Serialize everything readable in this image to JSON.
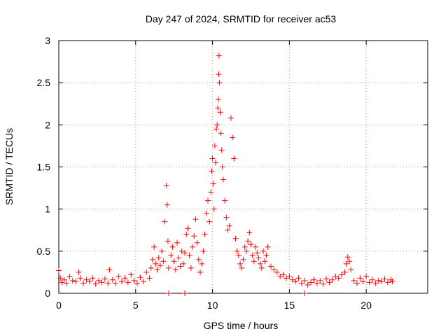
{
  "chart_data": {
    "type": "scatter",
    "title": "Day 247 of 2024, SRMTID for receiver ac53",
    "xlabel": "GPS time / hours",
    "ylabel": "SRMTID / TECUs",
    "xlim": [
      0,
      24
    ],
    "ylim": [
      0,
      3
    ],
    "xticks": [
      0,
      5,
      10,
      15,
      20
    ],
    "yticks": [
      0,
      0.5,
      1,
      1.5,
      2,
      2.5,
      3
    ],
    "xtick_labels": [
      "0",
      "5",
      "10",
      "15",
      "20"
    ],
    "ytick_labels": [
      "0",
      "0.5",
      "1",
      "1.5",
      "2",
      "2.5",
      "3"
    ],
    "grid": true,
    "marker": "+",
    "color": "#ff0000",
    "series": [
      {
        "name": "ac53",
        "x": [
          0.0,
          0.1,
          0.2,
          0.35,
          0.5,
          0.7,
          0.9,
          1.1,
          1.3,
          1.4,
          1.6,
          1.8,
          2.0,
          2.2,
          2.4,
          2.6,
          2.8,
          3.0,
          3.2,
          3.3,
          3.5,
          3.7,
          3.9,
          4.1,
          4.3,
          4.5,
          4.7,
          4.9,
          5.1,
          5.3,
          5.5,
          5.7,
          5.9,
          6.0,
          6.1,
          6.2,
          6.3,
          6.4,
          6.5,
          6.6,
          6.7,
          6.8,
          6.9,
          7.0,
          7.05,
          7.1,
          7.15,
          7.3,
          7.4,
          7.5,
          7.6,
          7.7,
          7.8,
          7.9,
          8.0,
          8.1,
          8.2,
          8.3,
          8.4,
          8.5,
          8.6,
          8.7,
          8.8,
          8.9,
          9.0,
          9.1,
          9.2,
          9.3,
          9.4,
          9.5,
          9.6,
          9.7,
          9.8,
          9.9,
          9.95,
          10.0,
          10.05,
          10.1,
          10.15,
          10.2,
          10.25,
          10.3,
          10.35,
          10.38,
          10.4,
          10.42,
          10.45,
          10.5,
          10.55,
          10.6,
          10.65,
          10.7,
          10.8,
          10.9,
          11.0,
          11.1,
          11.2,
          11.3,
          11.4,
          11.5,
          11.6,
          11.7,
          11.8,
          11.9,
          12.0,
          12.1,
          12.2,
          12.3,
          12.4,
          12.5,
          12.6,
          12.7,
          12.8,
          12.9,
          13.0,
          13.1,
          13.2,
          13.3,
          13.4,
          13.5,
          13.6,
          13.8,
          14.0,
          14.2,
          14.4,
          14.6,
          14.8,
          15.0,
          15.2,
          15.4,
          15.6,
          15.8,
          16.0,
          16.2,
          16.4,
          16.6,
          16.8,
          17.0,
          17.2,
          17.4,
          17.6,
          17.8,
          18.0,
          18.2,
          18.4,
          18.6,
          18.7,
          18.8,
          18.9,
          19.0,
          19.2,
          19.4,
          19.6,
          19.8,
          20.0,
          20.2,
          20.4,
          20.6,
          20.8,
          21.0,
          21.2,
          21.4,
          21.6,
          21.7,
          7.15,
          8.2,
          16.0
        ],
        "y": [
          0.27,
          0.18,
          0.13,
          0.16,
          0.12,
          0.2,
          0.15,
          0.14,
          0.25,
          0.18,
          0.12,
          0.16,
          0.14,
          0.18,
          0.11,
          0.15,
          0.13,
          0.17,
          0.12,
          0.28,
          0.16,
          0.12,
          0.2,
          0.14,
          0.18,
          0.13,
          0.22,
          0.15,
          0.12,
          0.19,
          0.14,
          0.25,
          0.18,
          0.3,
          0.4,
          0.55,
          0.35,
          0.28,
          0.42,
          0.33,
          0.5,
          0.38,
          0.85,
          1.28,
          1.05,
          0.62,
          0.3,
          0.45,
          0.55,
          0.38,
          0.28,
          0.6,
          0.42,
          0.32,
          0.5,
          0.35,
          0.48,
          0.7,
          0.77,
          0.45,
          0.3,
          0.55,
          0.68,
          0.88,
          0.6,
          0.4,
          0.25,
          0.35,
          0.5,
          0.7,
          0.95,
          1.1,
          0.85,
          1.2,
          1.45,
          1.6,
          1.3,
          1.0,
          1.75,
          1.55,
          1.95,
          2.0,
          2.2,
          2.3,
          2.6,
          2.82,
          2.5,
          2.15,
          1.9,
          1.7,
          1.5,
          1.35,
          1.1,
          0.9,
          0.75,
          0.8,
          2.08,
          1.85,
          1.6,
          0.65,
          0.5,
          0.45,
          0.35,
          0.3,
          0.4,
          0.55,
          0.5,
          0.62,
          0.72,
          0.58,
          0.45,
          0.38,
          0.55,
          0.48,
          0.42,
          0.35,
          0.3,
          0.5,
          0.38,
          0.45,
          0.55,
          0.32,
          0.28,
          0.25,
          0.2,
          0.22,
          0.18,
          0.2,
          0.16,
          0.14,
          0.18,
          0.12,
          0.15,
          0.1,
          0.13,
          0.16,
          0.12,
          0.15,
          0.11,
          0.17,
          0.13,
          0.16,
          0.2,
          0.18,
          0.22,
          0.25,
          0.35,
          0.43,
          0.38,
          0.28,
          0.15,
          0.12,
          0.18,
          0.14,
          0.2,
          0.13,
          0.16,
          0.12,
          0.15,
          0.14,
          0.17,
          0.13,
          0.16,
          0.14,
          0.0,
          0.0,
          0.0
        ]
      }
    ]
  }
}
